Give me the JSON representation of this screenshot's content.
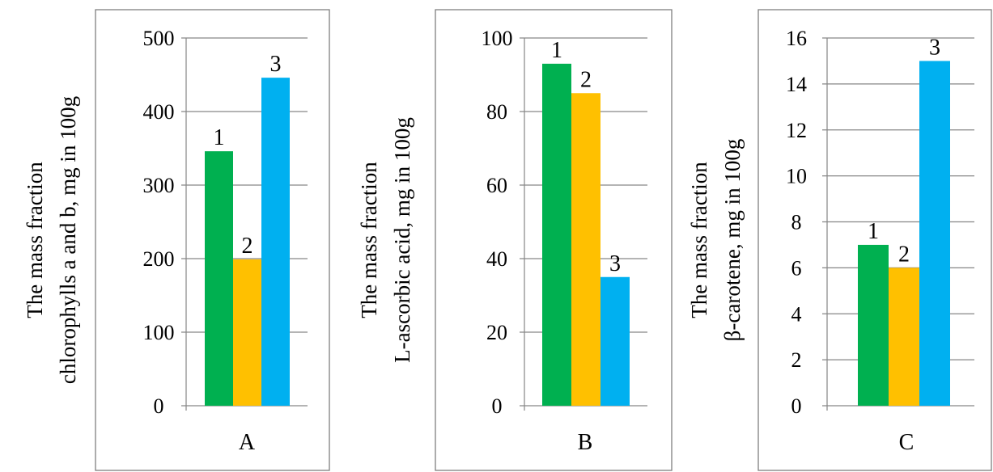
{
  "chart_data": [
    {
      "type": "bar",
      "category": "A",
      "ylabel_lines": [
        "The mass fraction",
        "chlorophylls a and b, mg in 100g"
      ],
      "ylim": [
        0,
        500
      ],
      "yticks": [
        0,
        100,
        200,
        300,
        400,
        500
      ],
      "series": [
        {
          "name": "1",
          "value": 346
        },
        {
          "name": "2",
          "value": 199
        },
        {
          "name": "3",
          "value": 446
        }
      ]
    },
    {
      "type": "bar",
      "category": "B",
      "ylabel_lines": [
        "The mass fraction",
        "L-ascorbic acid, mg in 100g"
      ],
      "ylim": [
        0,
        100
      ],
      "yticks": [
        0,
        20,
        40,
        60,
        80,
        100
      ],
      "series": [
        {
          "name": "1",
          "value": 93
        },
        {
          "name": "2",
          "value": 85
        },
        {
          "name": "3",
          "value": 35
        }
      ]
    },
    {
      "type": "bar",
      "category": "C",
      "ylabel_lines": [
        "The mass fraction",
        "β-carotene, mg in 100g"
      ],
      "ylim": [
        0,
        16
      ],
      "yticks": [
        0,
        2,
        4,
        6,
        8,
        10,
        12,
        14,
        16
      ],
      "series": [
        {
          "name": "1",
          "value": 7
        },
        {
          "name": "2",
          "value": 6
        },
        {
          "name": "3",
          "value": 15
        }
      ]
    }
  ],
  "colors": {
    "series_1": "#00b050",
    "series_2": "#ffc000",
    "series_3": "#00b0f0",
    "gridline": "#868686",
    "frame": "#7f7f7f"
  }
}
